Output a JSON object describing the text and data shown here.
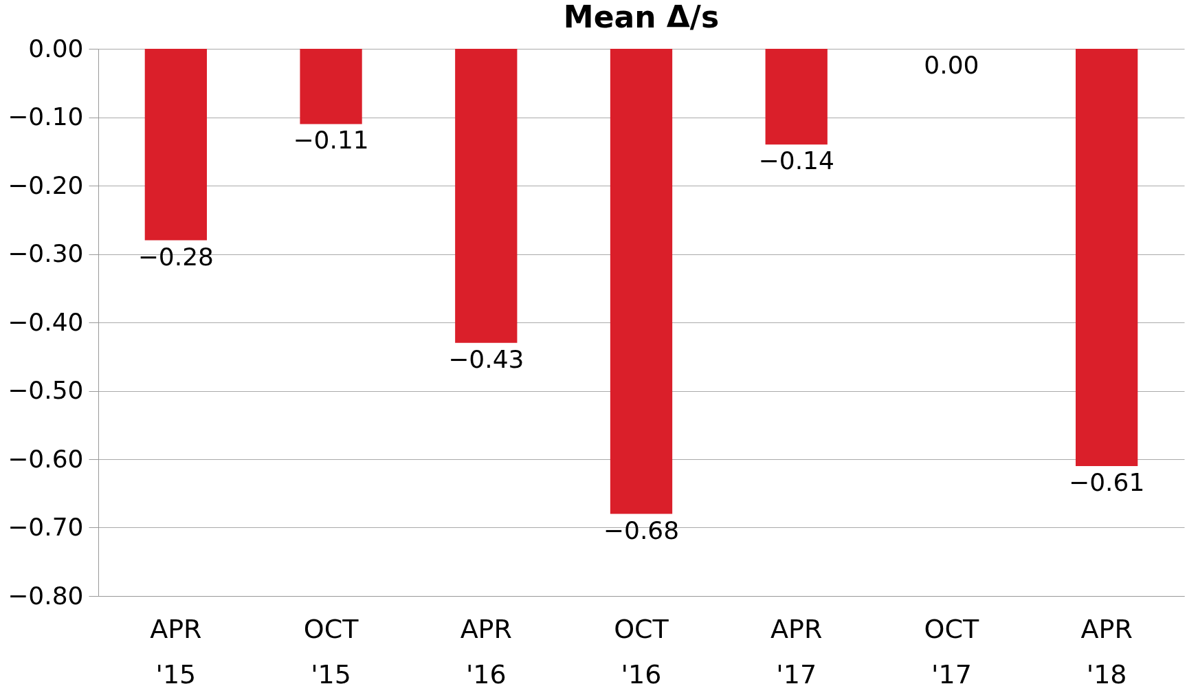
{
  "chart_data": {
    "type": "bar",
    "title": "Mean Δ/s",
    "categories": [
      "APR '15",
      "OCT '15",
      "APR '16",
      "OCT '16",
      "APR '17",
      "OCT '17",
      "APR '18"
    ],
    "values": [
      -0.28,
      -0.11,
      -0.43,
      -0.68,
      -0.14,
      0.0,
      -0.61
    ],
    "value_labels": [
      "−0.28",
      "−0.11",
      "−0.43",
      "−0.68",
      "−0.14",
      "0.00",
      "−0.61"
    ],
    "color": "#da1f2a",
    "ylim": [
      -0.8,
      0
    ],
    "yticks": [
      {
        "value": 0,
        "label": "0.00"
      },
      {
        "value": -0.1,
        "label": "−0.10"
      },
      {
        "value": -0.2,
        "label": "−0.20"
      },
      {
        "value": -0.3,
        "label": "−0.30"
      },
      {
        "value": -0.4,
        "label": "−0.40"
      },
      {
        "value": -0.5,
        "label": "−0.50"
      },
      {
        "value": -0.6,
        "label": "−0.60"
      },
      {
        "value": -0.7,
        "label": "−0.70"
      },
      {
        "value": -0.8,
        "label": "−0.80"
      }
    ],
    "grid": "y"
  }
}
